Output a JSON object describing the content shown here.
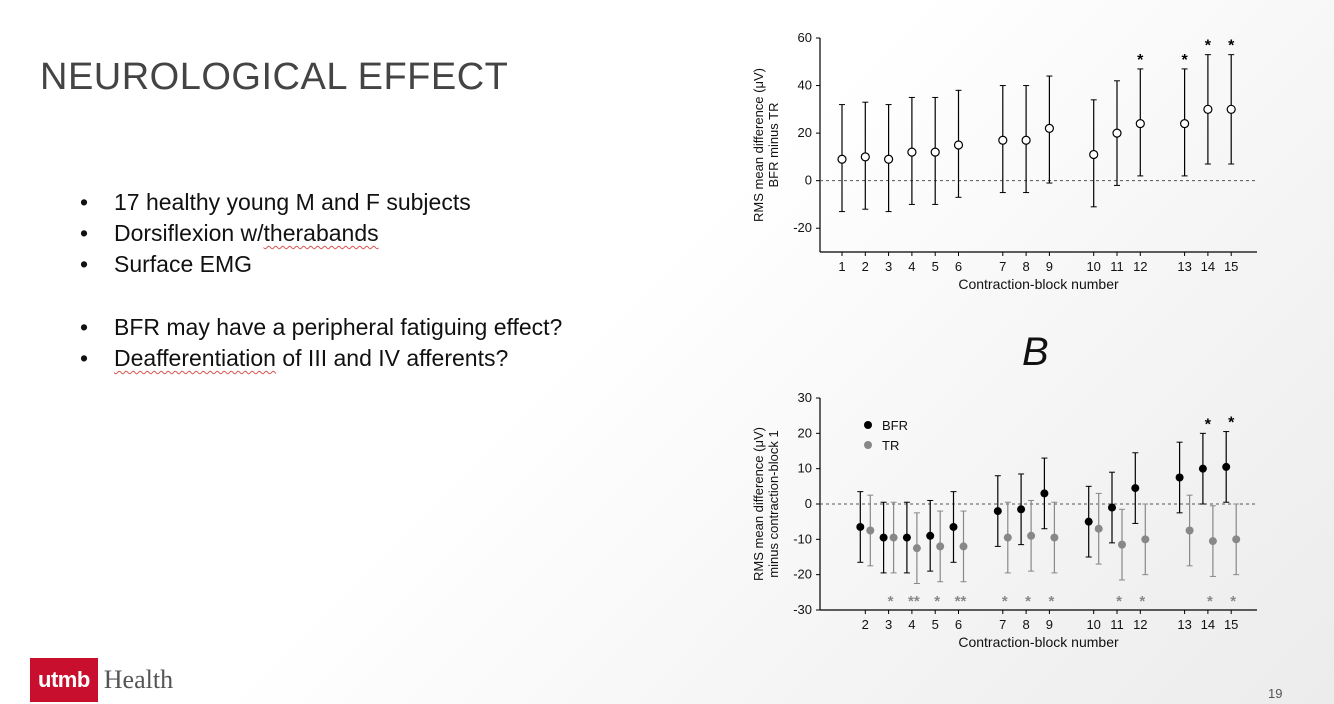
{
  "slide": {
    "title": "NEUROLOGICAL EFFECT",
    "bullets_group1": [
      {
        "text": "17 healthy young M and F subjects"
      },
      {
        "text": "Dorsiflexion w/",
        "squiggle": "therabands"
      },
      {
        "text": "Surface EMG"
      }
    ],
    "bullets_group2": [
      {
        "text": "BFR may have a peripheral fatiguing effect?"
      },
      {
        "squiggle": "Deafferentiation",
        "text": " of III and IV afferents?"
      }
    ],
    "bullet_char": "•",
    "panel_label": "B",
    "page_number": "19",
    "logo": {
      "mark": "utmb",
      "text": "Health"
    }
  },
  "colors": {
    "brand_red": "#c8102e",
    "bfr": "#000000",
    "tr": "#888888"
  },
  "chart_data": [
    {
      "type": "scatter",
      "title": "",
      "xlabel": "Contraction-block number",
      "ylabel": [
        "RMS mean difference (μV)",
        "BFR minus TR"
      ],
      "ylim": [
        -30,
        60
      ],
      "yticks": [
        -20,
        0,
        20,
        40,
        60
      ],
      "categories": [
        "1",
        "2",
        "3",
        "4",
        "5",
        "6",
        "7",
        "8",
        "9",
        "10",
        "11",
        "12",
        "13",
        "14",
        "15"
      ],
      "reference_line": 0,
      "series": [
        {
          "name": "BFR minus TR",
          "marker": "open-circle",
          "values": [
            9,
            10,
            9,
            12,
            12,
            15,
            17,
            17,
            22,
            11,
            20,
            24,
            24,
            30,
            30
          ],
          "err_low": [
            -13,
            -12,
            -13,
            -10,
            -10,
            -7,
            -5,
            -5,
            -1,
            -11,
            -2,
            2,
            2,
            7,
            7
          ],
          "err_high": [
            32,
            33,
            32,
            35,
            35,
            38,
            40,
            40,
            44,
            34,
            42,
            47,
            47,
            53,
            53
          ],
          "significant": [
            "12",
            "13",
            "14",
            "15"
          ],
          "sig_symbol": "*"
        }
      ]
    },
    {
      "type": "scatter",
      "title": "",
      "xlabel": "Contraction-block number",
      "ylabel": [
        "RMS mean difference (μV)",
        "minus contraction-block 1"
      ],
      "ylim": [
        -30,
        30
      ],
      "yticks": [
        -30,
        -20,
        -10,
        0,
        10,
        20,
        30
      ],
      "categories": [
        "2",
        "3",
        "4",
        "5",
        "6",
        "7",
        "8",
        "9",
        "10",
        "11",
        "12",
        "13",
        "14",
        "15"
      ],
      "reference_line": 0,
      "legend": {
        "placement": "top-left",
        "entries": [
          "BFR",
          "TR"
        ]
      },
      "series": [
        {
          "name": "BFR",
          "values": [
            -6.5,
            -9.5,
            -9.5,
            -9,
            -6.5,
            -2,
            -1.5,
            3,
            -5,
            -1,
            4.5,
            7.5,
            10,
            10.5
          ],
          "err_low": [
            -16.5,
            -19.5,
            -19.5,
            -19,
            -16.5,
            -12,
            -11.5,
            -7,
            -15,
            -11,
            -5.5,
            -2.5,
            0,
            0.5
          ],
          "err_high": [
            3.5,
            0.5,
            0.5,
            1,
            3.5,
            8,
            8.5,
            13,
            5,
            9,
            14.5,
            17.5,
            20,
            20.5
          ],
          "significant": [
            {
              "category": "14",
              "symbol": "*"
            },
            {
              "category": "15",
              "symbol": "*"
            }
          ]
        },
        {
          "name": "TR",
          "values": [
            -7.5,
            -9.5,
            -12.5,
            -12,
            -12,
            -9.5,
            -9,
            -9.5,
            -7,
            -11.5,
            -10,
            -7.5,
            -10.5,
            -10
          ],
          "err_low": [
            -17.5,
            -19.5,
            -22.5,
            -22,
            -22,
            -19.5,
            -19,
            -19.5,
            -17,
            -21.5,
            -20,
            -17.5,
            -20.5,
            -20
          ],
          "err_high": [
            2.5,
            0.5,
            -2.5,
            -2,
            -2,
            0.5,
            1,
            0.5,
            3,
            -1.5,
            0,
            2.5,
            -0.5,
            0
          ],
          "significant": [
            {
              "category": "3",
              "symbol": "*"
            },
            {
              "category": "4",
              "symbol": "**"
            },
            {
              "category": "5",
              "symbol": "*"
            },
            {
              "category": "6",
              "symbol": "**"
            },
            {
              "category": "7",
              "symbol": "*"
            },
            {
              "category": "8",
              "symbol": "*"
            },
            {
              "category": "9",
              "symbol": "*"
            },
            {
              "category": "11",
              "symbol": "*"
            },
            {
              "category": "12",
              "symbol": "*"
            },
            {
              "category": "14",
              "symbol": "*"
            },
            {
              "category": "15",
              "symbol": "*"
            }
          ]
        }
      ]
    }
  ]
}
